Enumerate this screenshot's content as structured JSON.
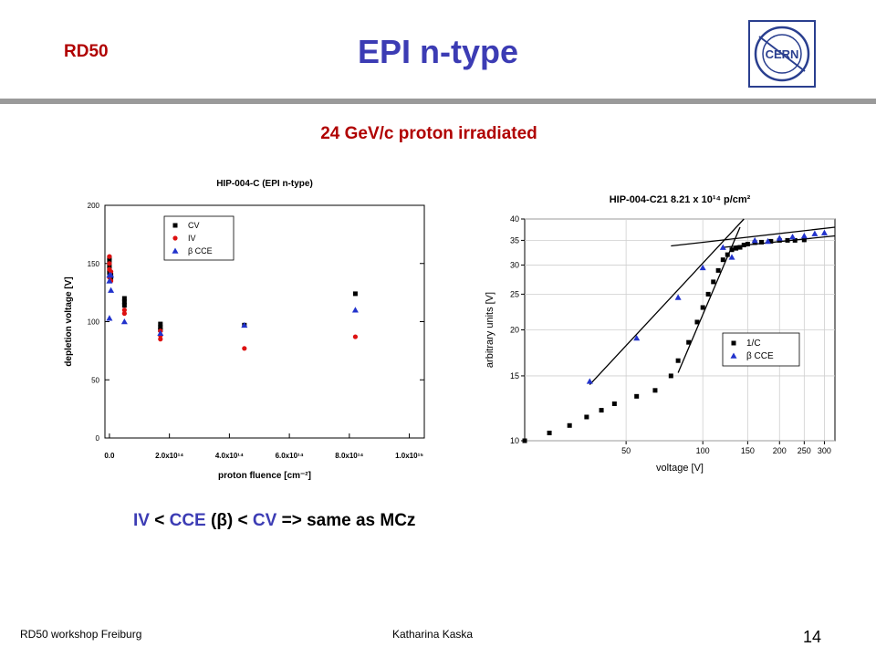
{
  "slide": {
    "header_tag": "RD50",
    "title": "EPI n-type",
    "subtitle": "24 GeV/c proton irradiated",
    "conclusion": {
      "iv": "IV",
      "lt1": " < ",
      "cce": "CCE",
      "beta": " (β) < ",
      "cv": "CV",
      "rest": " => same as MCz"
    },
    "footer_left": "RD50 workshop Freiburg",
    "footer_center": "Katharina Kaska",
    "page_number": "14",
    "logo_text": "CERN"
  },
  "chart_data": [
    {
      "type": "scatter",
      "title": "HIP-004-C (EPI n-type)",
      "xlabel": "proton fluence [cm⁻²]",
      "ylabel": "depletion voltage [V]",
      "xlim": [
        -15000000000000.0,
        1050000000000000.0
      ],
      "ylim": [
        0,
        200
      ],
      "x_ticks": [
        "0.0",
        "2.0x10¹⁴",
        "4.0x10¹⁴",
        "6.0x10¹⁴",
        "8.0x10¹⁴",
        "1.0x10¹⁵"
      ],
      "x_tick_values": [
        0,
        200000000000000.0,
        400000000000000.0,
        600000000000000.0,
        800000000000000.0,
        1000000000000000.0
      ],
      "y_ticks": [
        0,
        50,
        100,
        150,
        200
      ],
      "legend_position": "top-left",
      "series": [
        {
          "name": "CV",
          "color": "#000000",
          "marker": "square",
          "x": [
            0,
            0,
            0,
            0,
            0,
            5000000000000.0,
            5000000000000.0,
            50000000000000.0,
            50000000000000.0,
            50000000000000.0,
            170000000000000.0,
            170000000000000.0,
            170000000000000.0,
            450000000000000.0,
            820000000000000.0
          ],
          "y": [
            155,
            152,
            148,
            145,
            142,
            140,
            138,
            120,
            117,
            114,
            98,
            95,
            93,
            97,
            124
          ]
        },
        {
          "name": "IV",
          "color": "#dd1111",
          "marker": "circle",
          "x": [
            0,
            0,
            0,
            0,
            5000000000000.0,
            5000000000000.0,
            50000000000000.0,
            50000000000000.0,
            170000000000000.0,
            170000000000000.0,
            170000000000000.0,
            450000000000000.0,
            820000000000000.0
          ],
          "y": [
            156,
            150,
            145,
            138,
            143,
            135,
            110,
            107,
            92,
            88,
            85,
            77,
            87
          ]
        },
        {
          "name": "β CCE",
          "color": "#2233cc",
          "marker": "triangle",
          "x": [
            0,
            0,
            0,
            5000000000000.0,
            5000000000000.0,
            50000000000000.0,
            170000000000000.0,
            450000000000000.0,
            820000000000000.0
          ],
          "y": [
            103,
            140,
            135,
            140,
            127,
            100,
            90,
            97,
            110
          ]
        }
      ]
    },
    {
      "type": "scatter",
      "title": "HIP-004-C21 8.21 x 10¹⁴ p/cm²",
      "xlabel": "voltage [V]",
      "ylabel": "arbitrary units [V]",
      "x_scale": "log",
      "y_scale": "log",
      "xlim": [
        20,
        330
      ],
      "ylim": [
        10,
        40
      ],
      "x_ticks": [
        50,
        100,
        150,
        200,
        250,
        300
      ],
      "y_ticks": [
        10,
        15,
        20,
        25,
        30,
        35,
        40
      ],
      "legend_position": "bottom-right",
      "series": [
        {
          "name": "1/C",
          "color": "#000000",
          "marker": "square",
          "x": [
            20,
            25,
            30,
            35,
            40,
            45,
            55,
            65,
            75,
            80,
            88,
            95,
            100,
            105,
            110,
            115,
            120,
            125,
            130,
            135,
            140,
            145,
            150,
            160,
            170,
            185,
            200,
            215,
            230,
            250
          ],
          "y": [
            10,
            10.5,
            11,
            11.6,
            12.1,
            12.6,
            13.2,
            13.7,
            15,
            16.5,
            18.5,
            21,
            23,
            25,
            27,
            29,
            31,
            32,
            33,
            33.3,
            33.5,
            34,
            34.2,
            34.5,
            34.6,
            34.8,
            35,
            35,
            35,
            35.1
          ]
        },
        {
          "name": "β CCE",
          "color": "#2233cc",
          "marker": "triangle",
          "x": [
            36,
            55,
            80,
            100,
            120,
            130,
            160,
            180,
            200,
            225,
            250,
            275,
            300
          ],
          "y": [
            14.5,
            19,
            24.5,
            29.5,
            33.5,
            31.5,
            35,
            34.8,
            35.5,
            35.8,
            36,
            36.5,
            36.7
          ]
        }
      ],
      "fit_lines": [
        {
          "x": [
            36,
            145
          ],
          "y": [
            14.2,
            40
          ]
        },
        {
          "x": [
            120,
            330
          ],
          "y": [
            33.5,
            36
          ]
        },
        {
          "x": [
            75,
            330
          ],
          "y": [
            33.8,
            38
          ]
        },
        {
          "x": [
            80,
            140
          ],
          "y": [
            15.3,
            38
          ]
        }
      ]
    }
  ]
}
